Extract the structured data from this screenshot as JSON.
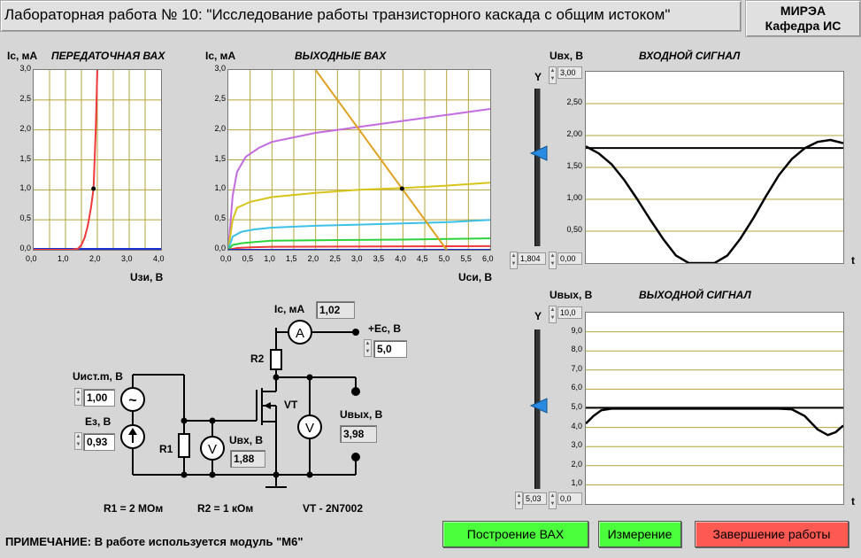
{
  "window": {
    "title": "Лабораторная работа № 10: \"Исследование работы транзисторного каскада с общим истоком\"",
    "org_line1": "МИРЭА",
    "org_line2": "Кафедра ИС"
  },
  "colors": {
    "background": "#d6d6d6",
    "grid": "#b5a53a",
    "btn_green": "#4cff3c",
    "btn_red": "#ff5a52",
    "pointer": "#2a8ae0"
  },
  "transfer_chart": {
    "title": "ПЕРЕДАТОЧНАЯ ВАХ",
    "ylabel": "Ic, мА",
    "xlabel": "Uзи, В",
    "xticks": [
      "0,0",
      "1,0",
      "2,0",
      "3,0",
      "4,0"
    ],
    "yticks": [
      "3,0",
      "2,5",
      "2,0",
      "1,5",
      "1,0",
      "0,5",
      "0,0"
    ]
  },
  "output_chart": {
    "title": "ВЫХОДНЫЕ ВАХ",
    "ylabel": "Ic, мА",
    "xlabel": "Uси, В",
    "xticks": [
      "0,0",
      "0,5",
      "1,0",
      "1,5",
      "2,0",
      "2,5",
      "3,0",
      "3,5",
      "4,0",
      "4,5",
      "5,0",
      "5,5",
      "6,0"
    ],
    "yticks": [
      "3,0",
      "2,5",
      "2,0",
      "1,5",
      "1,0",
      "0,5",
      "0,0"
    ]
  },
  "input_signal": {
    "title": "ВХОДНОЙ СИГНАЛ",
    "ylabel": "Uвх, В",
    "xlabel": "t",
    "axis_letter": "Y",
    "scale_max": "3,00",
    "scale_min": "0,00",
    "slider_value": "1,804",
    "yticks": [
      "2,50",
      "2,00",
      "1,50",
      "1,00",
      "0,50"
    ]
  },
  "output_signal": {
    "title": "ВЫХОДНОЙ СИГНАЛ",
    "ylabel": "Uвых, В",
    "xlabel": "t",
    "axis_letter": "Y",
    "scale_max": "10,0",
    "scale_min": "0,0",
    "slider_value": "5,03",
    "yticks": [
      "9,0",
      "8,0",
      "7,0",
      "6,0",
      "5,0",
      "4,0",
      "3,0",
      "2,0",
      "1,0"
    ]
  },
  "chart_data": [
    {
      "type": "line",
      "title": "ПЕРЕДАТОЧНАЯ ВАХ",
      "xlabel": "Uзи, В",
      "ylabel": "Ic, мА",
      "xlim": [
        0,
        4
      ],
      "ylim": [
        0,
        3
      ],
      "series": [
        {
          "x": [
            0,
            1.2,
            1.4,
            1.5,
            1.6,
            1.7,
            1.8,
            1.88,
            1.95,
            2.0
          ],
          "y": [
            0,
            0,
            0.02,
            0.08,
            0.2,
            0.4,
            0.7,
            1.02,
            2.0,
            3.0
          ]
        }
      ],
      "operating_point": {
        "x": 1.88,
        "y": 1.02
      }
    },
    {
      "type": "line",
      "title": "ВЫХОДНЫЕ ВАХ",
      "xlabel": "Uси, В",
      "ylabel": "Ic, мА",
      "xlim": [
        0,
        6
      ],
      "ylim": [
        0,
        3
      ],
      "series": [
        {
          "x": [
            0,
            0.1,
            0.2,
            0.4,
            0.7,
            1.0,
            2.0,
            3.0,
            4.0,
            5.0,
            6.0
          ],
          "y": [
            0,
            0.9,
            1.3,
            1.55,
            1.7,
            1.8,
            1.95,
            2.05,
            2.15,
            2.25,
            2.35
          ],
          "color": "#c36be0"
        },
        {
          "x": [
            0,
            0.1,
            0.2,
            0.5,
            1.0,
            2.0,
            3.0,
            4.0,
            5.0,
            6.0
          ],
          "y": [
            0,
            0.5,
            0.7,
            0.8,
            0.88,
            0.95,
            1.0,
            1.03,
            1.07,
            1.12
          ],
          "color": "#d6c41a"
        },
        {
          "x": [
            0,
            0.1,
            0.3,
            0.6,
            1.0,
            2.0,
            3.0,
            4.0,
            5.0,
            6.0
          ],
          "y": [
            0,
            0.22,
            0.3,
            0.34,
            0.37,
            0.4,
            0.42,
            0.44,
            0.46,
            0.5
          ],
          "color": "#3cc0e8"
        },
        {
          "x": [
            0,
            0.1,
            0.3,
            0.6,
            1.0,
            2.0,
            4.0,
            6.0
          ],
          "y": [
            0,
            0.08,
            0.11,
            0.13,
            0.15,
            0.16,
            0.17,
            0.19
          ],
          "color": "#2ed23c"
        },
        {
          "x": [
            0,
            0.2,
            0.5,
            1.0,
            6.0
          ],
          "y": [
            0,
            0.03,
            0.04,
            0.05,
            0.06
          ],
          "color": "#ee3a3a"
        },
        {
          "x": [
            0,
            6.0
          ],
          "y": [
            0,
            0
          ],
          "color": "#1a2fd0"
        },
        {
          "x": [
            2.0,
            5.0
          ],
          "y": [
            3.0,
            0.0
          ],
          "color": "#e0a222"
        }
      ],
      "operating_point": {
        "x": 3.98,
        "y": 1.02
      }
    },
    {
      "type": "line",
      "title": "ВХОДНОЙ СИГНАЛ",
      "ylabel": "Uвх, В",
      "xlabel": "t",
      "ylim": [
        0,
        3
      ],
      "series": [
        {
          "x": [
            0,
            0.05,
            0.1,
            0.15,
            0.2,
            0.25,
            0.3,
            0.35,
            0.4,
            0.45,
            0.5,
            0.55,
            0.6,
            0.65,
            0.7,
            0.75,
            0.8,
            0.85,
            0.9,
            0.95,
            1.0
          ],
          "y": [
            1.83,
            1.72,
            1.55,
            1.3,
            1.0,
            0.68,
            0.38,
            0.12,
            0.0,
            0.0,
            0.0,
            0.12,
            0.38,
            0.7,
            1.05,
            1.38,
            1.63,
            1.8,
            1.9,
            1.93,
            1.88
          ]
        },
        {
          "x": [
            0,
            1
          ],
          "y": [
            1.804,
            1.804
          ]
        }
      ]
    },
    {
      "type": "line",
      "title": "ВЫХОДНОЙ СИГНАЛ",
      "ylabel": "Uвых, В",
      "xlabel": "t",
      "ylim": [
        0,
        10
      ],
      "series": [
        {
          "x": [
            0,
            0.03,
            0.06,
            0.1,
            0.2,
            0.4,
            0.6,
            0.75,
            0.8,
            0.85,
            0.9,
            0.94,
            0.97,
            1.0
          ],
          "y": [
            4.2,
            4.6,
            4.9,
            4.98,
            4.98,
            4.98,
            4.98,
            4.98,
            4.95,
            4.6,
            3.9,
            3.6,
            3.75,
            4.1
          ]
        },
        {
          "x": [
            0,
            1
          ],
          "y": [
            5.03,
            5.03
          ]
        }
      ]
    }
  ],
  "circuit": {
    "ic_label": "Ic, мА",
    "ic_value": "1,02",
    "ec_label": "+Ec, В",
    "ec_value": "5,0",
    "uist_label": "Uист.m, В",
    "uist_value": "1,00",
    "ez_label": "Eз, В",
    "ez_value": "0,93",
    "uvx_label": "Uвх, В",
    "uvx_value": "1,88",
    "uvyx_label": "Uвых, В",
    "uvyx_value": "3,98",
    "r1_label": "R1",
    "r2_label": "R2",
    "vt_label": "VT",
    "ammeter_symbol": "A",
    "voltmeter_symbol": "V",
    "ac_symbol": "~",
    "r1_spec": "R1 = 2 МОм",
    "r2_spec": "R2 =  1 кОм",
    "vt_spec": "VT - 2N7002"
  },
  "note": "ПРИМЕЧАНИЕ: В работе используется модуль \"М6\"",
  "buttons": {
    "build": "Построение ВАХ",
    "measure": "Измерение",
    "finish": "Завершение работы"
  }
}
